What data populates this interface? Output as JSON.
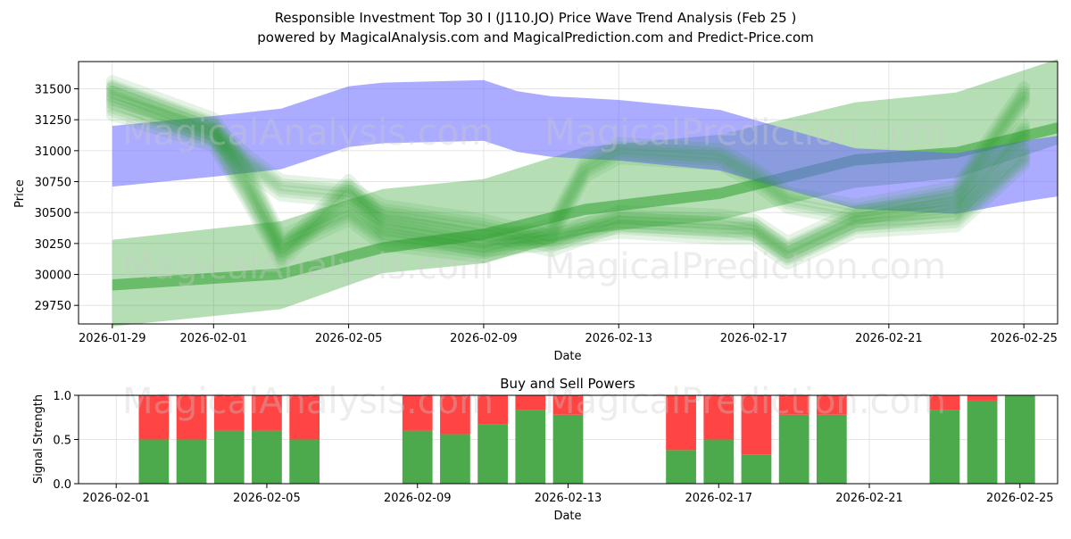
{
  "title_line1": "Responsible Investment Top 30 I (J110.JO) Price Wave Trend Analysis (Feb 25 )",
  "title_line2": "powered by MagicalAnalysis.com and MagicalPrediction.com and Predict-Price.com",
  "watermarks": [
    "MagicalAnalysis.com",
    "MagicalPrediction.com"
  ],
  "colors": {
    "blue_band": "#6666ff",
    "green": "#2ca02c",
    "buy": "#4caa4c",
    "sell": "#ff4444",
    "grid": "#dddddd"
  },
  "chart_data": [
    {
      "type": "area",
      "name": "price-wave",
      "title": "",
      "xlabel": "Date",
      "ylabel": "Price",
      "xlim": [
        "2026-01-28",
        "2026-02-26"
      ],
      "ylim": [
        29600,
        31720
      ],
      "x_ticks": [
        "2026-01-29",
        "2026-02-01",
        "2026-02-05",
        "2026-02-09",
        "2026-02-13",
        "2026-02-17",
        "2026-02-21",
        "2026-02-25"
      ],
      "y_ticks": [
        29750,
        30000,
        30250,
        30500,
        30750,
        31000,
        31250,
        31500
      ],
      "blue_band": {
        "dates": [
          "2026-01-29",
          "2026-02-01",
          "2026-02-03",
          "2026-02-05",
          "2026-02-06",
          "2026-02-09",
          "2026-02-10",
          "2026-02-11",
          "2026-02-13",
          "2026-02-16",
          "2026-02-17",
          "2026-02-20",
          "2026-02-23",
          "2026-02-25",
          "2026-02-26"
        ],
        "upper": [
          31200,
          31280,
          31340,
          31520,
          31550,
          31570,
          31480,
          31440,
          31410,
          31330,
          31250,
          31020,
          30980,
          31080,
          31120
        ],
        "lower": [
          30710,
          30790,
          30850,
          31030,
          31060,
          31080,
          30990,
          30950,
          30920,
          30840,
          30760,
          30530,
          30490,
          30590,
          30630
        ]
      },
      "green_bands": [
        {
          "dates": [
            "2026-01-29",
            "2026-02-03",
            "2026-02-06",
            "2026-02-09",
            "2026-02-12",
            "2026-02-16",
            "2026-02-20",
            "2026-02-23",
            "2026-02-26"
          ],
          "upper": [
            30280,
            30430,
            30690,
            30770,
            31030,
            31130,
            31390,
            31470,
            31740
          ],
          "lower": [
            29580,
            29720,
            30010,
            30090,
            30330,
            30440,
            30700,
            30780,
            31050
          ]
        },
        {
          "dates": [
            "2026-01-29",
            "2026-02-03",
            "2026-02-06",
            "2026-02-09",
            "2026-02-12",
            "2026-02-16",
            "2026-02-20",
            "2026-02-23",
            "2026-02-26"
          ],
          "upper": [
            29960,
            30050,
            30260,
            30370,
            30570,
            30700,
            30970,
            31030,
            31230
          ],
          "lower": [
            29870,
            29960,
            30170,
            30280,
            30480,
            30610,
            30880,
            30940,
            31140
          ]
        }
      ],
      "green_waves": [
        {
          "dates": [
            "2026-01-29",
            "2026-02-01",
            "2026-02-02",
            "2026-02-03",
            "2026-02-05",
            "2026-02-06",
            "2026-02-09",
            "2026-02-11",
            "2026-02-13",
            "2026-02-16",
            "2026-02-17",
            "2026-02-18",
            "2026-02-20",
            "2026-02-23",
            "2026-02-25"
          ],
          "values": [
            31450,
            31150,
            30900,
            30700,
            30650,
            30500,
            30380,
            30250,
            30450,
            30420,
            30380,
            30200,
            30450,
            30550,
            31150
          ]
        },
        {
          "dates": [
            "2026-01-29",
            "2026-02-01",
            "2026-02-02",
            "2026-02-03",
            "2026-02-05",
            "2026-02-06",
            "2026-02-09",
            "2026-02-11",
            "2026-02-13",
            "2026-02-16",
            "2026-02-17",
            "2026-02-18",
            "2026-02-20",
            "2026-02-23",
            "2026-02-25"
          ],
          "values": [
            31350,
            31100,
            30650,
            30150,
            30700,
            30400,
            30250,
            30300,
            30400,
            30350,
            30350,
            30150,
            30400,
            30450,
            30950
          ]
        },
        {
          "dates": [
            "2026-01-29",
            "2026-02-01",
            "2026-02-02",
            "2026-02-03",
            "2026-02-05",
            "2026-02-06",
            "2026-02-09",
            "2026-02-11",
            "2026-02-12",
            "2026-02-13",
            "2026-02-16",
            "2026-02-17",
            "2026-02-18",
            "2026-02-20",
            "2026-02-23",
            "2026-02-25"
          ],
          "values": [
            31500,
            31200,
            30800,
            30250,
            30500,
            30300,
            30200,
            30350,
            30850,
            31000,
            30950,
            30800,
            30600,
            30500,
            30650,
            31450
          ]
        }
      ]
    },
    {
      "type": "bar",
      "name": "buy-sell-powers",
      "title": "Buy and Sell Powers",
      "xlabel": "Date",
      "ylabel": "Signal Strength",
      "xlim": [
        "2026-01-31",
        "2026-02-26"
      ],
      "ylim": [
        0,
        1.0
      ],
      "x_ticks": [
        "2026-02-01",
        "2026-02-05",
        "2026-02-09",
        "2026-02-13",
        "2026-02-17",
        "2026-02-21",
        "2026-02-25"
      ],
      "y_ticks": [
        "0.0",
        "0.5",
        "1.0"
      ],
      "dates": [
        "2026-02-02",
        "2026-02-03",
        "2026-02-04",
        "2026-02-05",
        "2026-02-06",
        "2026-02-09",
        "2026-02-10",
        "2026-02-11",
        "2026-02-12",
        "2026-02-13",
        "2026-02-16",
        "2026-02-17",
        "2026-02-18",
        "2026-02-19",
        "2026-02-20",
        "2026-02-23",
        "2026-02-24",
        "2026-02-25"
      ],
      "buy": [
        0.5,
        0.5,
        0.6,
        0.6,
        0.5,
        0.6,
        0.56,
        0.67,
        0.83,
        0.78,
        0.38,
        0.5,
        0.33,
        0.78,
        0.78,
        0.83,
        0.94,
        1.0
      ],
      "sell": [
        0.5,
        0.5,
        0.4,
        0.4,
        0.5,
        0.4,
        0.44,
        0.33,
        0.17,
        0.22,
        0.62,
        0.5,
        0.67,
        0.22,
        0.22,
        0.17,
        0.06,
        0.0
      ]
    }
  ]
}
